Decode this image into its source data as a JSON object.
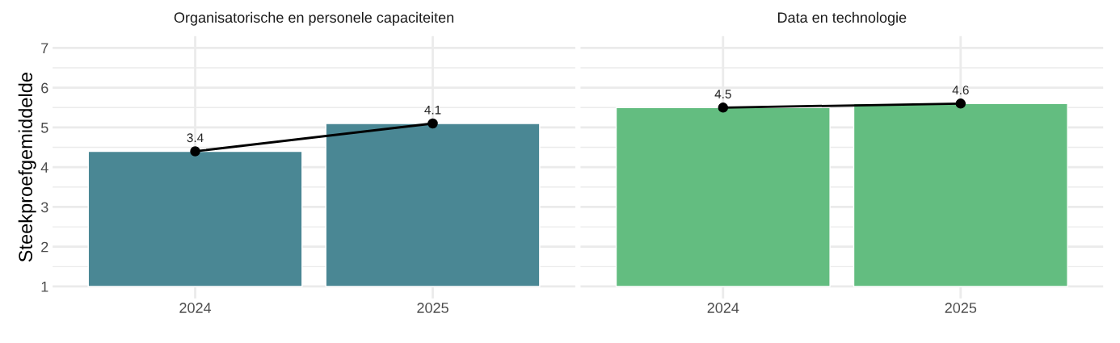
{
  "chart_data": [
    {
      "type": "bar",
      "title": "Organisatorische en personele capaciteiten",
      "ylabel": "Steekproefgemiddelde",
      "categories": [
        "2024",
        "2025"
      ],
      "ylim": [
        0.7,
        7.3
      ],
      "yticks": [
        1,
        2,
        3,
        4,
        5,
        6,
        7
      ],
      "grid": true,
      "series": [
        {
          "color": "#4a8794",
          "values": [
            3.4,
            4.1
          ],
          "base": [
            1,
            1
          ],
          "data_labels": true
        },
        {
          "type": "line",
          "color": "#000000",
          "values": [
            4.4,
            5.1
          ],
          "marker": "circle",
          "line_style": "solid"
        }
      ]
    },
    {
      "type": "bar",
      "title": "Data en technologie",
      "categories": [
        "2024",
        "2025"
      ],
      "ylim": [
        0.7,
        7.3
      ],
      "yticks": [
        1,
        2,
        3,
        4,
        5,
        6,
        7
      ],
      "grid": true,
      "tick_labels": "x",
      "series": [
        {
          "color": "#63bd80",
          "values": [
            4.5,
            4.6
          ],
          "base": [
            1,
            1
          ],
          "data_labels": true
        },
        {
          "type": "line",
          "color": "#000000",
          "values": [
            5.5,
            5.6
          ],
          "marker": "circle",
          "line_style": "solid"
        }
      ]
    }
  ]
}
